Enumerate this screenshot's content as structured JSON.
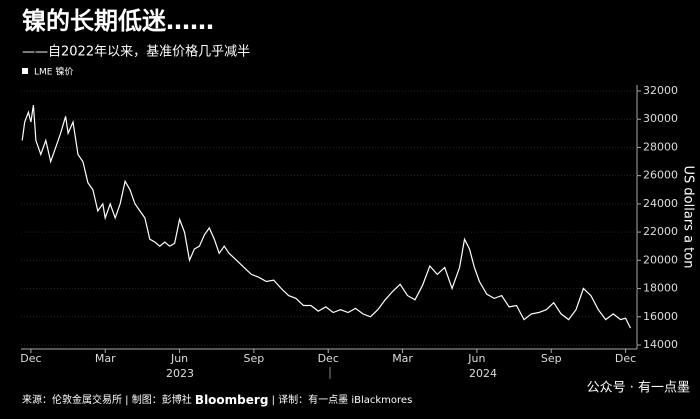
{
  "chart_data": {
    "type": "line",
    "title": "镍的长期低迷……",
    "subtitle": "——自2022年以来，基准价格几乎减半",
    "y_label": "US dollars a ton",
    "years": [
      "2023",
      "2024"
    ],
    "footer": {
      "source": "来源：伦敦金属交易所 | 制图：彭博社",
      "brand": "Bloomberg",
      "credit": "| 译制：有一点墨 iBlackmores",
      "watermark": "公众号 · 有一点墨"
    },
    "xlim": [
      -0.4,
      24.3
    ],
    "xticks": [
      {
        "value": 0,
        "label": "Dec"
      },
      {
        "value": 3,
        "label": "Mar"
      },
      {
        "value": 6,
        "label": "Jun"
      },
      {
        "value": 9,
        "label": "Sep"
      },
      {
        "value": 12,
        "label": "Dec"
      },
      {
        "value": 15,
        "label": "Mar"
      },
      {
        "value": 18,
        "label": "Jun"
      },
      {
        "value": 21,
        "label": "Sep"
      },
      {
        "value": 24,
        "label": "Dec"
      }
    ],
    "ylim": [
      13716,
      32425
    ],
    "yticks": [
      14000,
      16000,
      18000,
      20000,
      22000,
      24000,
      26000,
      28000,
      30000,
      32000
    ],
    "x": [
      -0.35,
      -0.25,
      -0.1,
      0,
      0.1,
      0.2,
      0.4,
      0.6,
      0.8,
      1,
      1.2,
      1.4,
      1.5,
      1.7,
      1.9,
      2.1,
      2.3,
      2.5,
      2.7,
      2.9,
      3,
      3.2,
      3.4,
      3.6,
      3.8,
      4,
      4.2,
      4.4,
      4.6,
      4.8,
      5,
      5.2,
      5.4,
      5.6,
      5.8,
      6,
      6.2,
      6.4,
      6.6,
      6.8,
      7,
      7.2,
      7.4,
      7.6,
      7.8,
      8,
      8.3,
      8.6,
      8.9,
      9.2,
      9.5,
      9.8,
      10.1,
      10.4,
      10.7,
      11,
      11.3,
      11.6,
      11.9,
      12.2,
      12.5,
      12.8,
      13.1,
      13.4,
      13.7,
      14,
      14.3,
      14.6,
      14.9,
      15.2,
      15.5,
      15.8,
      16.1,
      16.4,
      16.7,
      17,
      17.3,
      17.5,
      17.7,
      17.9,
      18.1,
      18.4,
      18.7,
      19,
      19.3,
      19.6,
      19.9,
      20.2,
      20.5,
      20.8,
      21.1,
      21.4,
      21.7,
      22,
      22.3,
      22.6,
      22.9,
      23.2,
      23.5,
      23.8,
      24,
      24.2
    ],
    "series": [
      {
        "name": "LME 镍价",
        "color": "#ffffff",
        "values": [
          28500,
          29800,
          30500,
          29800,
          31000,
          28500,
          27500,
          28500,
          27000,
          28000,
          29000,
          30200,
          29000,
          29800,
          27500,
          27000,
          25500,
          25000,
          23500,
          24000,
          23000,
          24000,
          23000,
          24000,
          25600,
          25000,
          24000,
          23500,
          23000,
          21500,
          21300,
          21000,
          21300,
          21000,
          21200,
          22900,
          22000,
          20000,
          20800,
          21000,
          21800,
          22300,
          21500,
          20500,
          21000,
          20500,
          20000,
          19500,
          19000,
          18800,
          18500,
          18600,
          18000,
          17500,
          17300,
          16800,
          16800,
          16400,
          16700,
          16300,
          16500,
          16300,
          16600,
          16200,
          16000,
          16500,
          17200,
          17800,
          18300,
          17500,
          17200,
          18200,
          19600,
          19000,
          19500,
          18000,
          19500,
          21500,
          20800,
          19500,
          18500,
          17600,
          17300,
          17500,
          16700,
          16800,
          15800,
          16200,
          16300,
          16500,
          17000,
          16200,
          15800,
          16500,
          18000,
          17500,
          16500,
          15800,
          16200,
          15800,
          15900,
          15200
        ]
      }
    ]
  }
}
